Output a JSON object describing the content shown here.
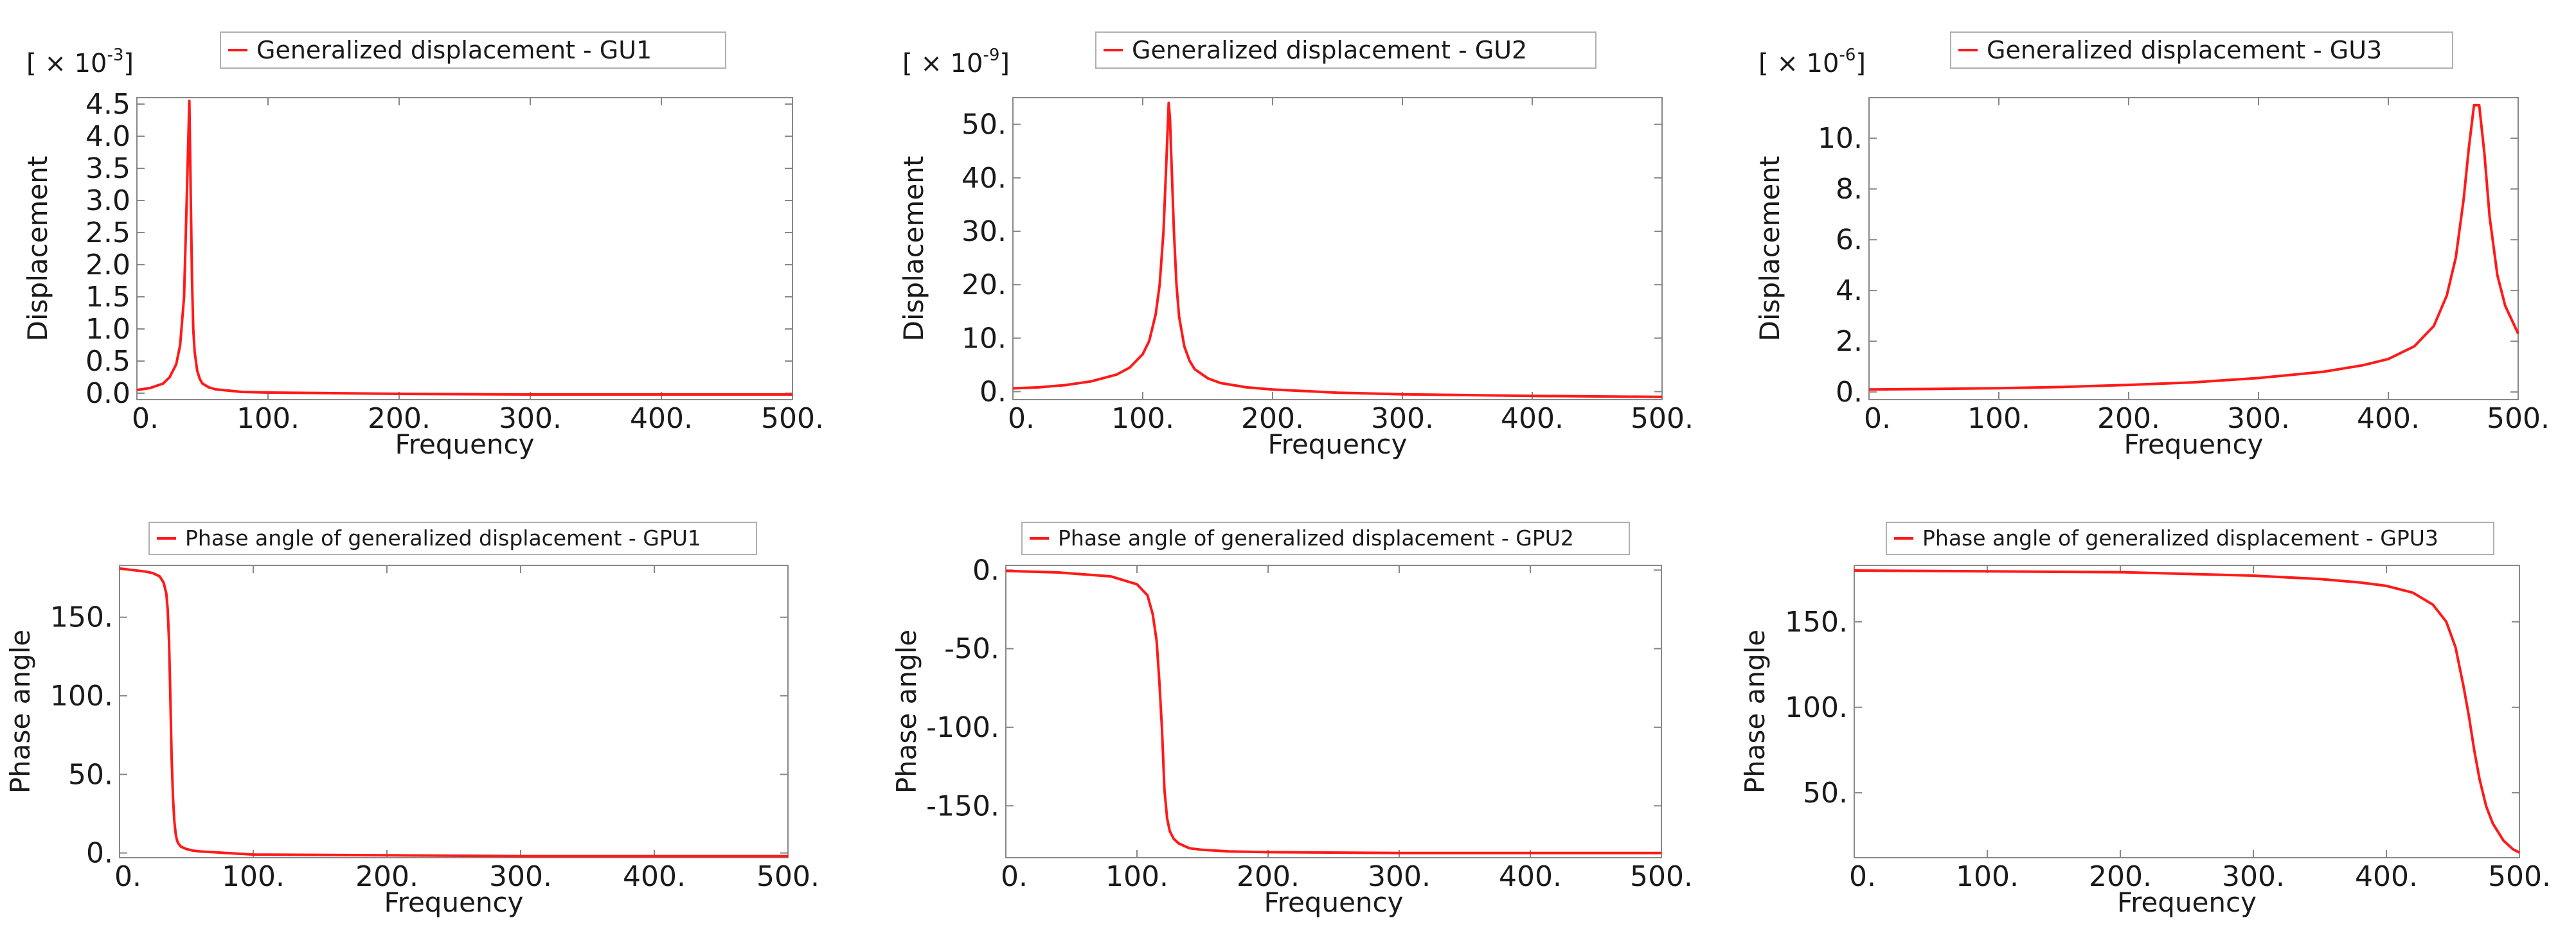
{
  "colors": {
    "series": "#ff1a1a",
    "axes": "#888888",
    "text": "#1a1a1a",
    "legend_border": "#b0b0b0"
  },
  "chart_data": [
    {
      "type": "line",
      "title": "",
      "legend": "Generalized displacement - GU1",
      "xlabel": "Frequency",
      "ylabel": "Displacement",
      "multiplier": {
        "base": "[ × 10",
        "exp": "-3",
        "close": "]"
      },
      "xlim": [
        0,
        500
      ],
      "ylim": [
        -0.1,
        4.6
      ],
      "xticks": [
        0,
        100,
        200,
        300,
        400,
        500
      ],
      "xtick_labels": [
        "0.",
        "100.",
        "200.",
        "300.",
        "400.",
        "500."
      ],
      "yticks": [
        0,
        0.5,
        1.0,
        1.5,
        2.0,
        2.5,
        3.0,
        3.5,
        4.0,
        4.5
      ],
      "ytick_labels": [
        "0.0",
        "0.5",
        "1.0",
        "1.5",
        "2.0",
        "2.5",
        "3.0",
        "3.5",
        "4.0",
        "4.5"
      ],
      "x": [
        0,
        10,
        20,
        25,
        30,
        33,
        36,
        38,
        40,
        41,
        42,
        43,
        44,
        46,
        48,
        50,
        55,
        60,
        70,
        80,
        100,
        150,
        200,
        300,
        400,
        500
      ],
      "y": [
        0.05,
        0.08,
        0.15,
        0.25,
        0.45,
        0.75,
        1.5,
        3.0,
        4.55,
        3.2,
        1.8,
        1.0,
        0.65,
        0.35,
        0.22,
        0.15,
        0.09,
        0.06,
        0.04,
        0.02,
        0.01,
        0.0,
        -0.01,
        -0.02,
        -0.02,
        -0.02
      ]
    },
    {
      "type": "line",
      "title": "",
      "legend": "Generalized displacement - GU2",
      "xlabel": "Frequency",
      "ylabel": "Displacement",
      "multiplier": {
        "base": "[ × 10",
        "exp": "-9",
        "close": "]"
      },
      "xlim": [
        0,
        500
      ],
      "ylim": [
        -1.5,
        55
      ],
      "xticks": [
        0,
        100,
        200,
        300,
        400,
        500
      ],
      "xtick_labels": [
        "0.",
        "100.",
        "200.",
        "300.",
        "400.",
        "500."
      ],
      "yticks": [
        0,
        10,
        20,
        30,
        40,
        50
      ],
      "ytick_labels": [
        "0.",
        "10.",
        "20.",
        "30.",
        "40.",
        "50."
      ],
      "x": [
        0,
        20,
        40,
        60,
        80,
        90,
        100,
        105,
        110,
        113,
        116,
        118,
        120,
        121,
        122,
        124,
        126,
        128,
        132,
        136,
        140,
        150,
        160,
        180,
        200,
        250,
        300,
        400,
        500
      ],
      "y": [
        0.6,
        0.8,
        1.2,
        1.9,
        3.2,
        4.5,
        7.0,
        9.5,
        14.5,
        20.0,
        30.0,
        42.0,
        54.0,
        51.0,
        44.0,
        30.0,
        20.0,
        14.0,
        8.5,
        5.8,
        4.2,
        2.5,
        1.6,
        0.8,
        0.4,
        -0.2,
        -0.5,
        -0.8,
        -1.0
      ]
    },
    {
      "type": "line",
      "title": "",
      "legend": "Generalized displacement - GU3",
      "xlabel": "Frequency",
      "ylabel": "Displacement",
      "multiplier": {
        "base": "[ × 10",
        "exp": "-6",
        "close": "]"
      },
      "xlim": [
        0,
        500
      ],
      "ylim": [
        -0.3,
        11.6
      ],
      "xticks": [
        0,
        100,
        200,
        300,
        400,
        500
      ],
      "xtick_labels": [
        "0.",
        "100.",
        "200.",
        "300.",
        "400.",
        "500."
      ],
      "yticks": [
        0,
        2,
        4,
        6,
        8,
        10
      ],
      "ytick_labels": [
        "0.",
        "2.",
        "4.",
        "6.",
        "8.",
        "10."
      ],
      "x": [
        0,
        50,
        100,
        150,
        200,
        250,
        300,
        350,
        380,
        400,
        420,
        435,
        445,
        452,
        458,
        462,
        466,
        470,
        474,
        478,
        484,
        490,
        500
      ],
      "y": [
        0.1,
        0.12,
        0.15,
        0.2,
        0.28,
        0.38,
        0.55,
        0.8,
        1.05,
        1.3,
        1.8,
        2.6,
        3.8,
        5.3,
        7.6,
        9.6,
        11.3,
        11.3,
        9.4,
        6.9,
        4.6,
        3.4,
        2.3
      ]
    },
    {
      "type": "line",
      "title": "",
      "legend": "Phase angle of generalized displacement - GPU1",
      "xlabel": "Frequency",
      "ylabel": "Phase angle",
      "xlim": [
        0,
        500
      ],
      "ylim": [
        -3,
        183
      ],
      "xticks": [
        0,
        100,
        200,
        300,
        400,
        500
      ],
      "xtick_labels": [
        "0.",
        "100.",
        "200.",
        "300.",
        "400.",
        "500."
      ],
      "yticks": [
        0,
        50,
        100,
        150
      ],
      "ytick_labels": [
        "0.",
        "50.",
        "100.",
        "150."
      ],
      "x": [
        0,
        10,
        20,
        25,
        30,
        33,
        35,
        36,
        37,
        38,
        39,
        40,
        41,
        42,
        43,
        44,
        46,
        50,
        55,
        60,
        70,
        80,
        100,
        200,
        300,
        400,
        500
      ],
      "y": [
        181,
        180,
        179,
        178,
        176,
        172,
        165,
        155,
        135,
        100,
        60,
        35,
        20,
        12,
        8,
        6,
        4,
        2.5,
        1.5,
        1,
        0.5,
        0,
        -1,
        -1.5,
        -2,
        -2,
        -2
      ]
    },
    {
      "type": "line",
      "title": "",
      "legend": "Phase angle of generalized displacement - GPU2",
      "xlabel": "Frequency",
      "ylabel": "Phase angle",
      "xlim": [
        0,
        500
      ],
      "ylim": [
        -183,
        3
      ],
      "xticks": [
        0,
        100,
        200,
        300,
        400,
        500
      ],
      "xtick_labels": [
        "0.",
        "100.",
        "200.",
        "300.",
        "400.",
        "500."
      ],
      "yticks": [
        0,
        -50,
        -100,
        -150
      ],
      "ytick_labels": [
        "0.",
        "-50.",
        "-100.",
        "-150."
      ],
      "x": [
        0,
        40,
        80,
        100,
        108,
        112,
        115,
        117,
        119,
        120,
        121,
        123,
        125,
        128,
        132,
        140,
        150,
        170,
        200,
        300,
        400,
        500
      ],
      "y": [
        -0.5,
        -1.5,
        -4,
        -9,
        -16,
        -28,
        -45,
        -70,
        -100,
        -120,
        -140,
        -158,
        -166,
        -171,
        -174,
        -177,
        -178,
        -179,
        -179.5,
        -180,
        -180,
        -180
      ]
    },
    {
      "type": "line",
      "title": "",
      "legend": "Phase angle of generalized displacement - GPU3",
      "xlabel": "Frequency",
      "ylabel": "Phase angle",
      "xlim": [
        0,
        500
      ],
      "ylim": [
        12,
        183
      ],
      "xticks": [
        0,
        100,
        200,
        300,
        400,
        500
      ],
      "xtick_labels": [
        "0.",
        "100.",
        "200.",
        "300.",
        "400.",
        "500."
      ],
      "yticks": [
        50,
        100,
        150
      ],
      "ytick_labels": [
        "50.",
        "100.",
        "150."
      ],
      "x": [
        0,
        100,
        200,
        300,
        350,
        380,
        400,
        420,
        435,
        445,
        452,
        458,
        462,
        466,
        470,
        475,
        480,
        488,
        495,
        500
      ],
      "y": [
        180,
        179.5,
        179,
        177,
        175,
        173,
        171,
        167,
        160,
        150,
        135,
        112,
        95,
        75,
        58,
        42,
        32,
        22,
        17,
        15
      ]
    }
  ]
}
